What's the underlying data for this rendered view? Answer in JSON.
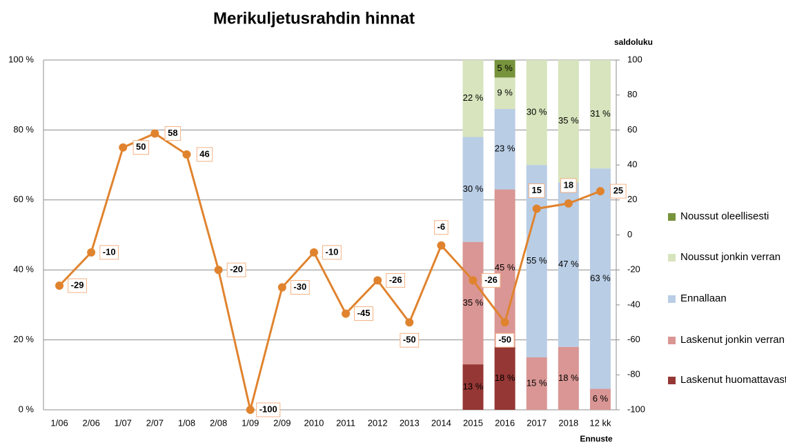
{
  "chart_data": {
    "type": "bar",
    "stacked": true,
    "title": "Merikuljetusrahdin hinnat",
    "y2_label": "saldoluku",
    "annotations": [
      "Ennuste"
    ],
    "categories": [
      "1/06",
      "2/06",
      "1/07",
      "2/07",
      "1/08",
      "2/08",
      "1/09",
      "2/09",
      "2010",
      "2011",
      "2012",
      "2013",
      "2014",
      "2015",
      "2016",
      "2017",
      "2018",
      "12 kk"
    ],
    "ylim": [
      0,
      100
    ],
    "yticks": [
      {
        "value": 0,
        "label": "0 %"
      },
      {
        "value": 20,
        "label": "20 %"
      },
      {
        "value": 40,
        "label": "40 %"
      },
      {
        "value": 60,
        "label": "60 %"
      },
      {
        "value": 80,
        "label": "80 %"
      },
      {
        "value": 100,
        "label": "100 %"
      }
    ],
    "y2lim": [
      -100,
      100
    ],
    "y2ticks": [
      -100,
      -80,
      -60,
      -40,
      -20,
      0,
      20,
      40,
      60,
      80,
      100
    ],
    "grid": true,
    "legend": "right",
    "series": [
      {
        "name": "Laskenut huomattavasti",
        "color": "#953735",
        "values": [
          null,
          null,
          null,
          null,
          null,
          null,
          null,
          null,
          null,
          null,
          null,
          null,
          null,
          13,
          18,
          null,
          null,
          null
        ],
        "value_labels": [
          null,
          null,
          null,
          null,
          null,
          null,
          null,
          null,
          null,
          null,
          null,
          null,
          null,
          "13 %",
          "18 %",
          null,
          null,
          null
        ]
      },
      {
        "name": "Laskenut jonkin verran",
        "color": "#d99694",
        "values": [
          null,
          null,
          null,
          null,
          null,
          null,
          null,
          null,
          null,
          null,
          null,
          null,
          null,
          35,
          45,
          15,
          18,
          6
        ],
        "value_labels": [
          null,
          null,
          null,
          null,
          null,
          null,
          null,
          null,
          null,
          null,
          null,
          null,
          null,
          "35 %",
          "45 %",
          "15 %",
          "18 %",
          "6 %"
        ]
      },
      {
        "name": "Ennallaan",
        "color": "#b9cde5",
        "values": [
          null,
          null,
          null,
          null,
          null,
          null,
          null,
          null,
          null,
          null,
          null,
          null,
          null,
          30,
          23,
          55,
          47,
          63
        ],
        "value_labels": [
          null,
          null,
          null,
          null,
          null,
          null,
          null,
          null,
          null,
          null,
          null,
          null,
          null,
          "30 %",
          "23 %",
          "55 %",
          "47 %",
          "63 %"
        ]
      },
      {
        "name": "Noussut jonkin verran",
        "color": "#d7e4bd",
        "values": [
          null,
          null,
          null,
          null,
          null,
          null,
          null,
          null,
          null,
          null,
          null,
          null,
          null,
          22,
          9,
          30,
          35,
          31
        ],
        "value_labels": [
          null,
          null,
          null,
          null,
          null,
          null,
          null,
          null,
          null,
          null,
          null,
          null,
          null,
          "22 %",
          "9 %",
          "30 %",
          "35 %",
          "31 %"
        ]
      },
      {
        "name": "Noussut oleellisesti",
        "color": "#77933c",
        "values": [
          null,
          null,
          null,
          null,
          null,
          null,
          null,
          null,
          null,
          null,
          null,
          null,
          null,
          null,
          5,
          null,
          null,
          null
        ],
        "value_labels": [
          null,
          null,
          null,
          null,
          null,
          null,
          null,
          null,
          null,
          null,
          null,
          null,
          null,
          null,
          "5 %",
          null,
          null,
          null
        ]
      },
      {
        "type": "line",
        "axis": "y2",
        "color": "#e0832e",
        "values": [
          -29,
          -10,
          50,
          58,
          46,
          -20,
          -100,
          -30,
          -10,
          -45,
          -26,
          -50,
          -6,
          -26,
          -50,
          15,
          18,
          25
        ]
      }
    ]
  }
}
